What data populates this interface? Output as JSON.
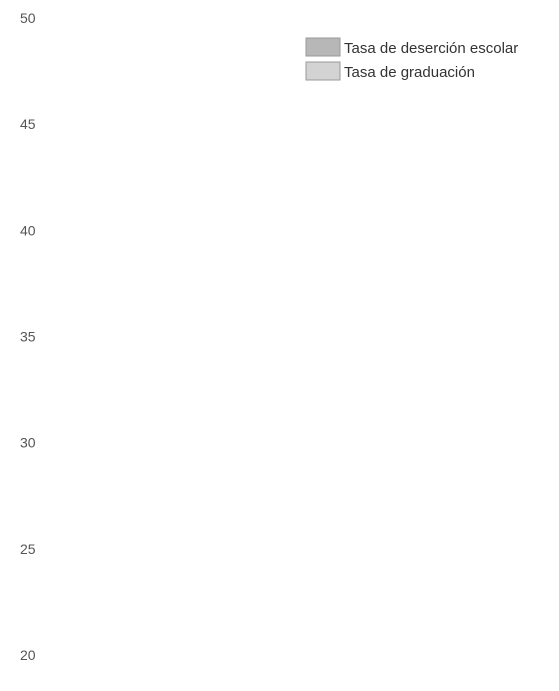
{
  "chart_data": {
    "type": "bar",
    "title": "",
    "xlabel": "",
    "ylabel": "",
    "categories": [],
    "ylim": [
      20,
      50
    ],
    "yticks": [
      50,
      45,
      40,
      35,
      30,
      25,
      20
    ],
    "grid": false,
    "legend_position": "top-right",
    "series": [
      {
        "name": "Tasa de deserción escolar",
        "color": "#b7b7b7",
        "values": []
      },
      {
        "name": "Tasa de graduación",
        "color": "#d3d3d3",
        "values": []
      }
    ]
  }
}
